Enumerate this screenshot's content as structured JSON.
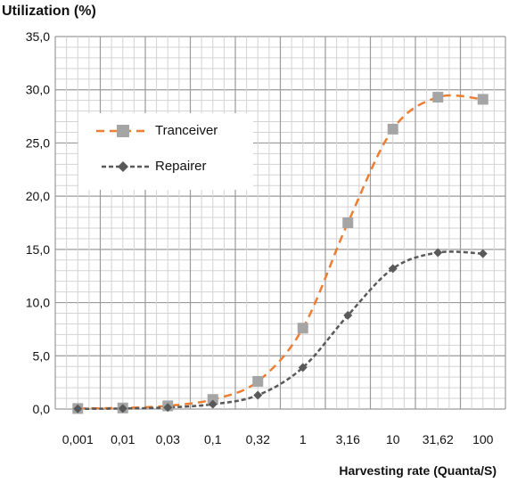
{
  "chart_data": {
    "type": "line",
    "title": "",
    "ylabel": "Utilization (%)",
    "xlabel": "Harvesting rate (Quanta/S)",
    "categories": [
      "0,001",
      "0,01",
      "0,03",
      "0,1",
      "0,32",
      "1",
      "3,16",
      "10",
      "31,62",
      "100"
    ],
    "ylim": [
      0,
      35
    ],
    "yticks": [
      "0,0",
      "5,0",
      "10,0",
      "15,0",
      "20,0",
      "25,0",
      "30,0",
      "35,0"
    ],
    "grid": true,
    "legend_position": "upper-left",
    "series": [
      {
        "name": "Tranceiver",
        "color": "#ED7D31",
        "marker_color": "#A5A5A5",
        "marker": "square",
        "values": [
          0.05,
          0.1,
          0.3,
          0.9,
          2.6,
          7.6,
          17.5,
          26.3,
          29.3,
          29.1
        ]
      },
      {
        "name": "Repairer",
        "color": "#595959",
        "marker_color": "#595959",
        "marker": "diamond",
        "values": [
          0.02,
          0.05,
          0.15,
          0.45,
          1.3,
          3.9,
          8.8,
          13.2,
          14.7,
          14.6
        ]
      }
    ]
  }
}
